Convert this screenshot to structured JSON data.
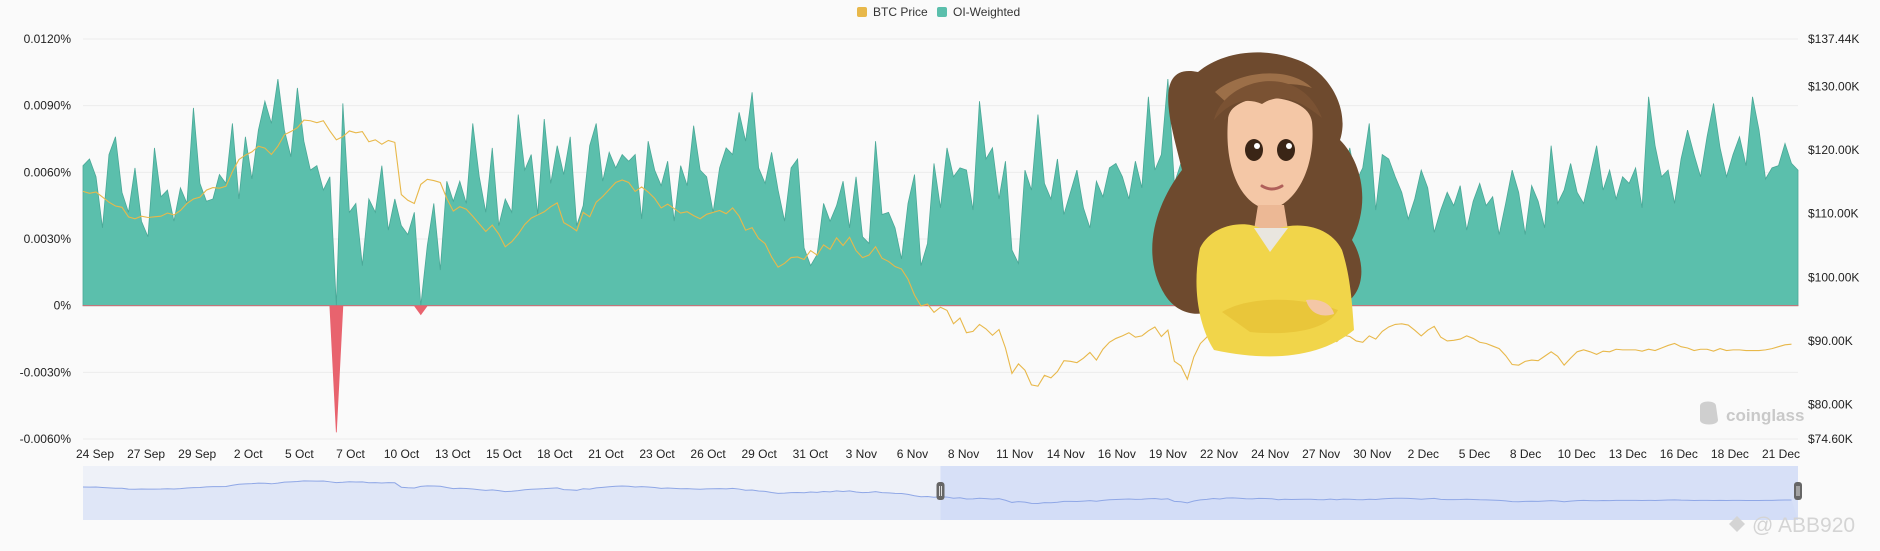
{
  "chart_data": {
    "type": "area",
    "title": "",
    "legend": {
      "placement": "top-center",
      "entries": [
        {
          "label": "BTC Price",
          "color": "#e8b84a"
        },
        {
          "label": "OI-Weighted",
          "color": "#5bbfac"
        }
      ]
    },
    "y_left": {
      "ticks": [
        "0.0120%",
        "0.0090%",
        "0.0060%",
        "0.0030%",
        "0%",
        "-0.0030%",
        "-0.0060%"
      ],
      "tick_values": [
        0.012,
        0.009,
        0.006,
        0.003,
        0,
        -0.003,
        -0.006
      ],
      "range": [
        -0.006,
        0.012
      ]
    },
    "y_right": {
      "ticks": [
        "$137.44K",
        "$130.00K",
        "$120.00K",
        "$110.00K",
        "$100.00K",
        "$90.00K",
        "$80.00K",
        "$74.60K"
      ],
      "tick_values": [
        137.44,
        130,
        120,
        110,
        100,
        90,
        80,
        74.6
      ],
      "range": [
        74.6,
        137.44
      ]
    },
    "x_ticks": [
      "24 Sep",
      "27 Sep",
      "29 Sep",
      "2 Oct",
      "5 Oct",
      "7 Oct",
      "10 Oct",
      "13 Oct",
      "15 Oct",
      "18 Oct",
      "21 Oct",
      "23 Oct",
      "26 Oct",
      "29 Oct",
      "31 Oct",
      "3 Nov",
      "6 Nov",
      "8 Nov",
      "11 Nov",
      "14 Nov",
      "16 Nov",
      "19 Nov",
      "22 Nov",
      "24 Nov",
      "27 Nov",
      "30 Nov",
      "2 Dec",
      "5 Dec",
      "8 Dec",
      "10 Dec",
      "13 Dec",
      "16 Dec",
      "18 Dec",
      "21 Dec"
    ],
    "grid": "horizontal",
    "series": [
      {
        "name": "OI-Weighted",
        "unit": "%",
        "values": [
          0.0063,
          0.0066,
          0.0058,
          0.0035,
          0.0068,
          0.0076,
          0.0051,
          0.0042,
          0.0062,
          0.0038,
          0.0031,
          0.0071,
          0.0049,
          0.0052,
          0.0038,
          0.0053,
          0.0046,
          0.0089,
          0.0055,
          0.0047,
          0.0048,
          0.0059,
          0.0055,
          0.0082,
          0.0048,
          0.0076,
          0.0057,
          0.0079,
          0.0092,
          0.0082,
          0.0102,
          0.0079,
          0.0067,
          0.0098,
          0.0074,
          0.0061,
          0.0063,
          0.0052,
          0.0058,
          -0.0057,
          0.0091,
          0.0042,
          0.0046,
          0.0018,
          0.0048,
          0.0042,
          0.0063,
          0.0034,
          0.0048,
          0.0036,
          0.0032,
          0.0042,
          -0.0004,
          0.0027,
          0.0046,
          0.0016,
          0.0056,
          0.0047,
          0.0056,
          0.0046,
          0.0082,
          0.0058,
          0.0042,
          0.0071,
          0.0036,
          0.0048,
          0.0042,
          0.0086,
          0.0061,
          0.0068,
          0.0041,
          0.0084,
          0.0055,
          0.0072,
          0.0059,
          0.0076,
          0.0036,
          0.0045,
          0.0072,
          0.0082,
          0.0056,
          0.0069,
          0.0062,
          0.0068,
          0.0065,
          0.0068,
          0.0039,
          0.0074,
          0.0061,
          0.0054,
          0.0065,
          0.0038,
          0.0063,
          0.0054,
          0.0081,
          0.0061,
          0.0058,
          0.0042,
          0.0062,
          0.0071,
          0.0068,
          0.0087,
          0.0074,
          0.0096,
          0.0062,
          0.0055,
          0.0069,
          0.0052,
          0.0038,
          0.0062,
          0.0066,
          0.0026,
          0.0018,
          0.0023,
          0.0046,
          0.0038,
          0.0045,
          0.0056,
          0.0035,
          0.0058,
          0.0031,
          0.0028,
          0.0074,
          0.0041,
          0.0042,
          0.0035,
          0.0021,
          0.0046,
          0.0059,
          0.0018,
          0.0028,
          0.0064,
          0.0044,
          0.0071,
          0.0058,
          0.0062,
          0.0061,
          0.0043,
          0.0092,
          0.0066,
          0.0071,
          0.0048,
          0.0065,
          0.0025,
          0.0019,
          0.0061,
          0.0052,
          0.0086,
          0.0055,
          0.0048,
          0.0066,
          0.0041,
          0.0051,
          0.0061,
          0.0044,
          0.0035,
          0.0056,
          0.0049,
          0.0062,
          0.0064,
          0.0058,
          0.0048,
          0.0065,
          0.0053,
          0.0094,
          0.0061,
          0.0068,
          0.0102,
          0.0055,
          0.0064,
          0.0052,
          0.0061,
          0.0066,
          0.0072,
          0.0077,
          0.0064,
          0.0073,
          0.0072,
          0.0072,
          0.0071,
          0.0054,
          0.0058,
          0.0067,
          0.0066,
          0.0064,
          0.0062,
          0.0059,
          0.0058,
          0.0073,
          0.0062,
          0.0064,
          0.0068,
          0.0081,
          0.0075,
          0.0059,
          0.0071,
          0.0056,
          0.0062,
          0.0082,
          0.0043,
          0.0068,
          0.0066,
          0.0058,
          0.0051,
          0.0039,
          0.0048,
          0.0061,
          0.0053,
          0.0033,
          0.0043,
          0.0051,
          0.0045,
          0.0054,
          0.0034,
          0.0047,
          0.0055,
          0.0045,
          0.0049,
          0.0032,
          0.0046,
          0.0061,
          0.0051,
          0.0032,
          0.0054,
          0.0047,
          0.0035,
          0.0072,
          0.0046,
          0.0052,
          0.0064,
          0.0051,
          0.0046,
          0.0059,
          0.0072,
          0.0052,
          0.0061,
          0.0048,
          0.0058,
          0.0055,
          0.0062,
          0.0044,
          0.0094,
          0.0072,
          0.0058,
          0.0061,
          0.0046,
          0.0066,
          0.0079,
          0.0068,
          0.0058,
          0.0076,
          0.0091,
          0.0071,
          0.0058,
          0.0068,
          0.0076,
          0.0063,
          0.0094,
          0.0079,
          0.0057,
          0.0062,
          0.0063,
          0.0073,
          0.0064,
          0.0061
        ]
      },
      {
        "name": "BTC Price",
        "unit": "K USD",
        "values": [
          113.5,
          113.2,
          113.4,
          112.6,
          111.8,
          111.2,
          111.0,
          109.5,
          109.2,
          109.6,
          109.4,
          109.5,
          109.6,
          110.1,
          109.8,
          110.5,
          111.6,
          112.3,
          112.6,
          113.7,
          114.1,
          114.0,
          114.3,
          116.6,
          118.5,
          119.2,
          119.7,
          120.6,
          120.3,
          119.3,
          120.6,
          122.4,
          122.9,
          123.5,
          124.7,
          124.6,
          124.3,
          124.6,
          123.0,
          121.6,
          122.1,
          123.0,
          122.7,
          122.9,
          121.3,
          121.6,
          120.9,
          121.5,
          121.2,
          113.0,
          112.1,
          111.6,
          114.6,
          115.4,
          115.2,
          114.9,
          112.4,
          110.4,
          111.1,
          110.7,
          109.6,
          108.4,
          107.2,
          108.2,
          106.8,
          104.8,
          105.6,
          106.8,
          108.3,
          109.3,
          109.8,
          110.3,
          111.1,
          111.7,
          108.6,
          108.0,
          107.3,
          110.2,
          109.5,
          111.8,
          112.7,
          113.8,
          114.9,
          115.3,
          114.9,
          113.5,
          114.2,
          113.4,
          112.4,
          110.9,
          111.5,
          110.8,
          110.1,
          110.3,
          109.7,
          109.2,
          109.9,
          110.2,
          110.5,
          110.0,
          110.9,
          109.6,
          107.4,
          107.8,
          106.1,
          105.3,
          103.2,
          101.6,
          102.2,
          103.1,
          103.2,
          102.8,
          104.2,
          103.5,
          105.1,
          104.4,
          106.2,
          105.0,
          106.3,
          104.2,
          103.1,
          103.5,
          104.8,
          103.0,
          102.5,
          101.7,
          101.3,
          99.7,
          97.2,
          95.5,
          95.8,
          94.5,
          95.3,
          94.8,
          92.7,
          93.6,
          91.3,
          91.5,
          92.6,
          91.9,
          90.9,
          91.8,
          88.9,
          84.9,
          86.4,
          85.4,
          83.1,
          82.9,
          84.6,
          84.2,
          85.2,
          86.9,
          86.8,
          86.6,
          87.3,
          88.2,
          87.0,
          88.7,
          89.8,
          90.4,
          90.8,
          91.3,
          90.6,
          90.8,
          91.6,
          92.2,
          90.7,
          91.7,
          86.8,
          86.1,
          84.0,
          87.5,
          89.6,
          90.6,
          92.1,
          91.2,
          93.0,
          93.4,
          92.7,
          91.7,
          91.4,
          92.5,
          92.2,
          91.6,
          89.9,
          90.8,
          90.2,
          90.6,
          90.8,
          90.8,
          90.0,
          89.9,
          91.1,
          89.9,
          90.9,
          90.7,
          90.0,
          89.8,
          90.8,
          90.3,
          91.5,
          92.2,
          92.6,
          92.7,
          92.5,
          91.7,
          90.8,
          91.7,
          92.3,
          90.6,
          90.0,
          90.1,
          90.3,
          90.8,
          90.4,
          89.8,
          89.6,
          89.2,
          88.8,
          87.7,
          86.3,
          86.2,
          86.8,
          87.0,
          86.9,
          87.6,
          88.3,
          87.6,
          86.2,
          87.3,
          88.3,
          88.6,
          88.3,
          87.9,
          88.4,
          88.3,
          88.7,
          88.6,
          88.6,
          88.6,
          88.4,
          88.7,
          88.5,
          88.9,
          89.3,
          89.6,
          89.1,
          88.9,
          88.5,
          88.7,
          88.7,
          88.4,
          88.8,
          88.5,
          88.6,
          88.6,
          88.5,
          88.5,
          88.5,
          88.6,
          88.8,
          89.1,
          89.4,
          89.5
        ]
      }
    ],
    "range_selector": {
      "range_start_fraction": 0.5,
      "range_end_fraction": 1.0
    },
    "watermark": "coinglass"
  },
  "credit": "@ ABB920",
  "colors": {
    "oi_positive": "#5bbfac",
    "oi_negative": "#e8636e",
    "btc_line": "#e8b84a",
    "navigator_line": "#8fa7e6",
    "navigator_fill": "#dfe6f7",
    "navigator_selected": "#cfdaf7"
  }
}
